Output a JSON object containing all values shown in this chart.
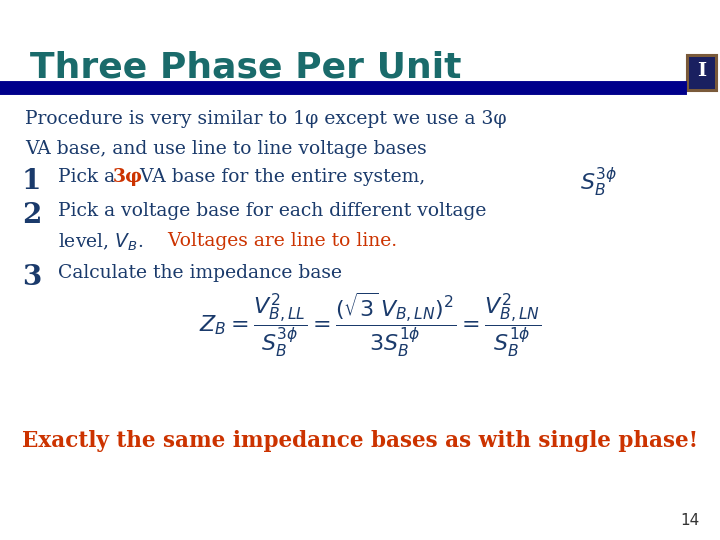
{
  "title": "Three Phase Per Unit",
  "title_color": "#1a6b6b",
  "title_fontsize": 26,
  "bg_color": "#ffffff",
  "bar_color": "#00008B",
  "text_color": "#1a3a6b",
  "orange_color": "#cc3300",
  "slide_number": "14",
  "line1": "Procedure is very similar to 1φ except we use a 3φ",
  "line2": "VA base, and use line to line voltage bases",
  "item1_num": "1",
  "item2_num": "2",
  "item3_num": "3",
  "bottom_orange": "Exactly the same impedance bases as with single phase!",
  "logo_bg": "#1a2060",
  "logo_border": "#7a5a3a"
}
